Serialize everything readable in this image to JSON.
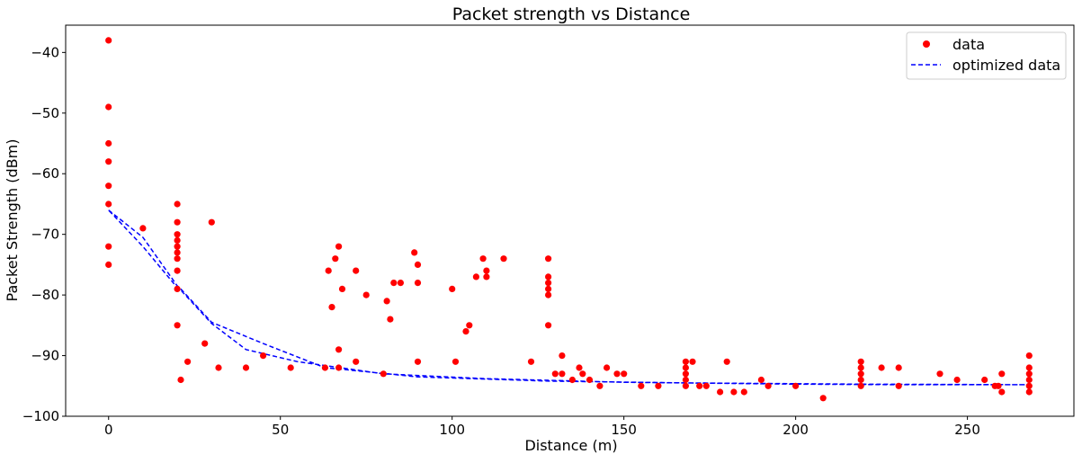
{
  "chart_data": {
    "type": "scatter",
    "title": "Packet strength vs Distance",
    "xlabel": "Distance (m)",
    "ylabel": "Packet Strength (dBm)",
    "xlim": [
      -12.5,
      281
    ],
    "ylim": [
      -100,
      -35.5
    ],
    "xticks": [
      0,
      50,
      100,
      150,
      200,
      250
    ],
    "xtick_labels": [
      "0",
      "50",
      "100",
      "150",
      "200",
      "250"
    ],
    "yticks": [
      -100,
      -90,
      -80,
      -70,
      -60,
      -50,
      -40
    ],
    "ytick_labels": [
      "−100",
      "−90",
      "−80",
      "−70",
      "−60",
      "−50",
      "−40"
    ],
    "grid": false,
    "legend_position": "top-right",
    "series": [
      {
        "name": "data",
        "kind": "scatter",
        "color": "#ff0000",
        "points": [
          [
            0,
            -38
          ],
          [
            0,
            -49
          ],
          [
            0,
            -55
          ],
          [
            0,
            -58
          ],
          [
            0,
            -62
          ],
          [
            0,
            -65
          ],
          [
            0,
            -72
          ],
          [
            0,
            -75
          ],
          [
            10,
            -69
          ],
          [
            20,
            -65
          ],
          [
            20,
            -68
          ],
          [
            20,
            -70
          ],
          [
            20,
            -71
          ],
          [
            20,
            -72
          ],
          [
            20,
            -73
          ],
          [
            20,
            -74
          ],
          [
            20,
            -76
          ],
          [
            20,
            -79
          ],
          [
            20,
            -85
          ],
          [
            21,
            -94
          ],
          [
            23,
            -91
          ],
          [
            28,
            -88
          ],
          [
            30,
            -68
          ],
          [
            32,
            -92
          ],
          [
            40,
            -92
          ],
          [
            45,
            -90
          ],
          [
            53,
            -92
          ],
          [
            63,
            -92
          ],
          [
            64,
            -76
          ],
          [
            65,
            -82
          ],
          [
            66,
            -74
          ],
          [
            67,
            -72
          ],
          [
            67,
            -89
          ],
          [
            67,
            -92
          ],
          [
            68,
            -79
          ],
          [
            72,
            -76
          ],
          [
            72,
            -91
          ],
          [
            75,
            -80
          ],
          [
            80,
            -93
          ],
          [
            81,
            -81
          ],
          [
            82,
            -84
          ],
          [
            83,
            -78
          ],
          [
            85,
            -78
          ],
          [
            89,
            -73
          ],
          [
            90,
            -75
          ],
          [
            90,
            -78
          ],
          [
            90,
            -91
          ],
          [
            100,
            -79
          ],
          [
            101,
            -91
          ],
          [
            104,
            -86
          ],
          [
            105,
            -85
          ],
          [
            107,
            -77
          ],
          [
            109,
            -74
          ],
          [
            110,
            -76
          ],
          [
            110,
            -77
          ],
          [
            115,
            -74
          ],
          [
            123,
            -91
          ],
          [
            128,
            -74
          ],
          [
            128,
            -77
          ],
          [
            128,
            -78
          ],
          [
            128,
            -79
          ],
          [
            128,
            -80
          ],
          [
            128,
            -85
          ],
          [
            130,
            -93
          ],
          [
            132,
            -90
          ],
          [
            132,
            -93
          ],
          [
            135,
            -94
          ],
          [
            137,
            -92
          ],
          [
            138,
            -93
          ],
          [
            140,
            -94
          ],
          [
            143,
            -95
          ],
          [
            145,
            -92
          ],
          [
            148,
            -93
          ],
          [
            150,
            -93
          ],
          [
            155,
            -95
          ],
          [
            160,
            -95
          ],
          [
            168,
            -91
          ],
          [
            168,
            -92
          ],
          [
            168,
            -93
          ],
          [
            168,
            -94
          ],
          [
            168,
            -95
          ],
          [
            170,
            -91
          ],
          [
            172,
            -95
          ],
          [
            174,
            -95
          ],
          [
            178,
            -96
          ],
          [
            180,
            -91
          ],
          [
            182,
            -96
          ],
          [
            185,
            -96
          ],
          [
            190,
            -94
          ],
          [
            192,
            -95
          ],
          [
            200,
            -95
          ],
          [
            208,
            -97
          ],
          [
            219,
            -91
          ],
          [
            219,
            -92
          ],
          [
            219,
            -93
          ],
          [
            219,
            -94
          ],
          [
            219,
            -95
          ],
          [
            225,
            -92
          ],
          [
            230,
            -92
          ],
          [
            230,
            -95
          ],
          [
            242,
            -93
          ],
          [
            247,
            -94
          ],
          [
            255,
            -94
          ],
          [
            258,
            -95
          ],
          [
            259,
            -95
          ],
          [
            260,
            -93
          ],
          [
            260,
            -96
          ],
          [
            268,
            -90
          ],
          [
            268,
            -92
          ],
          [
            268,
            -93
          ],
          [
            268,
            -94
          ],
          [
            268,
            -95
          ],
          [
            268,
            -96
          ]
        ]
      },
      {
        "name": "optimized data",
        "kind": "line",
        "style": "dashed",
        "color": "#0000ff",
        "points": [
          [
            0,
            -66
          ],
          [
            10,
            -70.5
          ],
          [
            20,
            -78.5
          ],
          [
            21,
            -79
          ],
          [
            30,
            -84.5
          ],
          [
            45,
            -88
          ],
          [
            63,
            -92
          ],
          [
            67,
            -92.2
          ],
          [
            90,
            -93.5
          ],
          [
            128,
            -94.2
          ],
          [
            168,
            -94.5
          ],
          [
            219,
            -94.7
          ],
          [
            268,
            -94.8
          ],
          [
            260,
            -94.8
          ],
          [
            230,
            -94.8
          ],
          [
            200,
            -94.7
          ],
          [
            150,
            -94.4
          ],
          [
            110,
            -93.8
          ],
          [
            80,
            -93
          ],
          [
            55,
            -91
          ],
          [
            40,
            -89
          ],
          [
            30,
            -84.7
          ],
          [
            21,
            -79.2
          ],
          [
            20,
            -78.8
          ],
          [
            10,
            -72
          ],
          [
            0,
            -66
          ]
        ]
      }
    ]
  }
}
